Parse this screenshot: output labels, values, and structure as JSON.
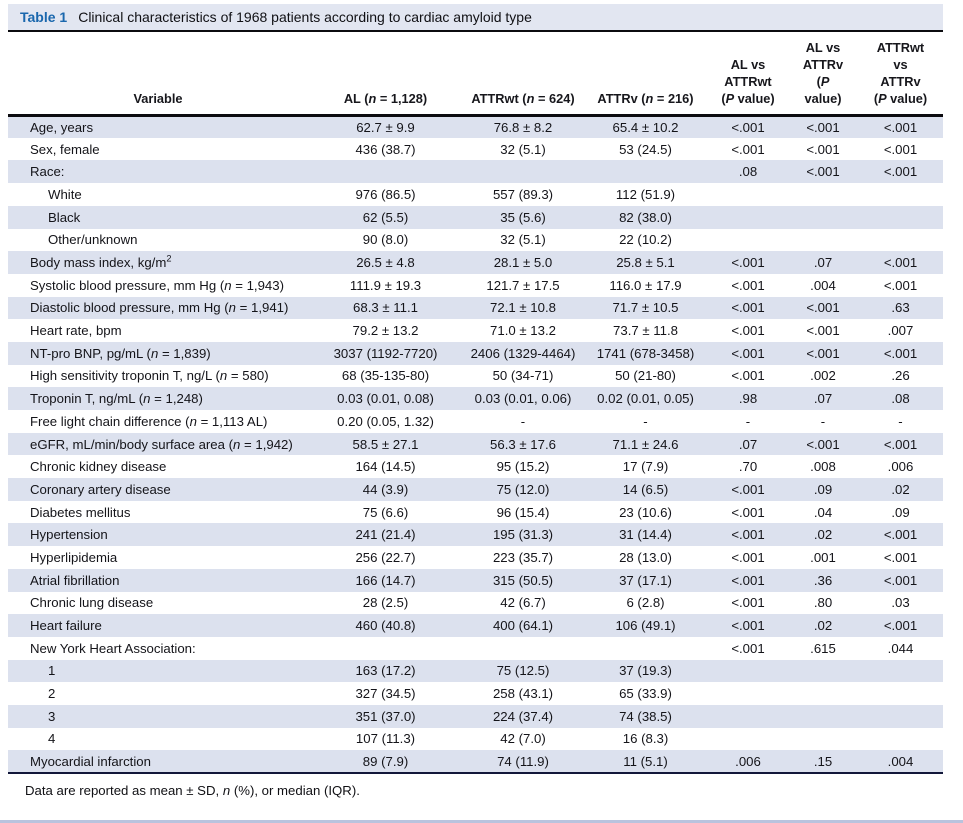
{
  "caption": {
    "label": "Table 1",
    "title": "Clinical characteristics of 1968 patients according to cardiac amyloid type"
  },
  "colors": {
    "accent_blue": "#1a67ad",
    "row_band": "#dce1ee",
    "caption_band": "#e2e6f1",
    "rule_dark": "#0b0b0f",
    "bottom_edge_line": "#b9c3de"
  },
  "table": {
    "columns": [
      {
        "label": "Variable"
      },
      {
        "label": "AL (*n* = 1,128)"
      },
      {
        "label": "ATTRwt (*n* = 624)"
      },
      {
        "label": "ATTRv (*n* = 216)"
      },
      {
        "label": "AL vs\nATTRwt\n(*P* value)"
      },
      {
        "label": "AL vs\nATTRv\n(*P*\nvalue)"
      },
      {
        "label": "ATTRwt\nvs\nATTRv\n(*P* value)"
      }
    ],
    "rows": [
      {
        "label": "Age, years",
        "indent": false,
        "cells": [
          "62.7 ± 9.9",
          "76.8 ± 8.2",
          "65.4 ± 10.2",
          "<.001",
          "<.001",
          "<.001"
        ]
      },
      {
        "label": "Sex, female",
        "indent": false,
        "cells": [
          "436 (38.7)",
          "32 (5.1)",
          "53 (24.5)",
          "<.001",
          "<.001",
          "<.001"
        ]
      },
      {
        "label": "Race:",
        "indent": false,
        "cells": [
          "",
          "",
          "",
          ".08",
          "<.001",
          "<.001"
        ]
      },
      {
        "label": "White",
        "indent": true,
        "cells": [
          "976 (86.5)",
          "557 (89.3)",
          "112 (51.9)",
          "",
          "",
          ""
        ]
      },
      {
        "label": "Black",
        "indent": true,
        "cells": [
          "62 (5.5)",
          "35 (5.6)",
          "82 (38.0)",
          "",
          "",
          ""
        ]
      },
      {
        "label": "Other/unknown",
        "indent": true,
        "cells": [
          "90 (8.0)",
          "32 (5.1)",
          "22 (10.2)",
          "",
          "",
          ""
        ]
      },
      {
        "label": "Body mass index, kg/m^2^",
        "indent": false,
        "cells": [
          "26.5 ± 4.8",
          "28.1 ± 5.0",
          "25.8 ± 5.1",
          "<.001",
          ".07",
          "<.001"
        ]
      },
      {
        "label": "Systolic blood pressure, mm Hg (*n* = 1,943)",
        "indent": false,
        "cells": [
          "111.9 ± 19.3",
          "121.7 ± 17.5",
          "116.0 ± 17.9",
          "<.001",
          ".004",
          "<.001"
        ]
      },
      {
        "label": "Diastolic blood pressure, mm Hg (*n* = 1,941)",
        "indent": false,
        "cells": [
          "68.3 ± 11.1",
          "72.1 ± 10.8",
          "71.7 ± 10.5",
          "<.001",
          "<.001",
          ".63"
        ]
      },
      {
        "label": "Heart rate, bpm",
        "indent": false,
        "cells": [
          "79.2 ± 13.2",
          "71.0 ± 13.2",
          "73.7 ± 11.8",
          "<.001",
          "<.001",
          ".007"
        ]
      },
      {
        "label": "NT-pro BNP, pg/mL (*n* = 1,839)",
        "indent": false,
        "cells": [
          "3037 (1192-7720)",
          "2406 (1329-4464)",
          "1741 (678-3458)",
          "<.001",
          "<.001",
          "<.001"
        ]
      },
      {
        "label": "High sensitivity troponin T, ng/L (*n* = 580)",
        "indent": false,
        "cells": [
          "68 (35-135-80)",
          "50 (34-71)",
          "50 (21-80)",
          "<.001",
          ".002",
          ".26"
        ]
      },
      {
        "label": "Troponin T, ng/mL (*n* = 1,248)",
        "indent": false,
        "cells": [
          "0.03 (0.01, 0.08)",
          "0.03 (0.01, 0.06)",
          "0.02 (0.01, 0.05)",
          ".98",
          ".07",
          ".08"
        ]
      },
      {
        "label": "Free light chain difference (*n* = 1,113 AL)",
        "indent": false,
        "cells": [
          "0.20 (0.05, 1.32)",
          "-",
          "-",
          "-",
          "-",
          "-"
        ]
      },
      {
        "label": "eGFR, mL/min/body surface area (*n* = 1,942)",
        "indent": false,
        "cells": [
          "58.5 ± 27.1",
          "56.3 ± 17.6",
          "71.1 ± 24.6",
          ".07",
          "<.001",
          "<.001"
        ]
      },
      {
        "label": "Chronic kidney disease",
        "indent": false,
        "cells": [
          "164 (14.5)",
          "95 (15.2)",
          "17 (7.9)",
          ".70",
          ".008",
          ".006"
        ]
      },
      {
        "label": "Coronary artery disease",
        "indent": false,
        "cells": [
          "44 (3.9)",
          "75 (12.0)",
          "14 (6.5)",
          "<.001",
          ".09",
          ".02"
        ]
      },
      {
        "label": "Diabetes mellitus",
        "indent": false,
        "cells": [
          "75 (6.6)",
          "96 (15.4)",
          "23 (10.6)",
          "<.001",
          ".04",
          ".09"
        ]
      },
      {
        "label": "Hypertension",
        "indent": false,
        "cells": [
          "241 (21.4)",
          "195 (31.3)",
          "31 (14.4)",
          "<.001",
          ".02",
          "<.001"
        ]
      },
      {
        "label": "Hyperlipidemia",
        "indent": false,
        "cells": [
          "256 (22.7)",
          "223 (35.7)",
          "28 (13.0)",
          "<.001",
          ".001",
          "<.001"
        ]
      },
      {
        "label": "Atrial fibrillation",
        "indent": false,
        "cells": [
          "166 (14.7)",
          "315 (50.5)",
          "37 (17.1)",
          "<.001",
          ".36",
          "<.001"
        ]
      },
      {
        "label": "Chronic lung disease",
        "indent": false,
        "cells": [
          "28 (2.5)",
          "42 (6.7)",
          "6 (2.8)",
          "<.001",
          ".80",
          ".03"
        ]
      },
      {
        "label": "Heart failure",
        "indent": false,
        "cells": [
          "460 (40.8)",
          "400 (64.1)",
          "106 (49.1)",
          "<.001",
          ".02",
          "<.001"
        ]
      },
      {
        "label": "New York Heart Association:",
        "indent": false,
        "cells": [
          "",
          "",
          "",
          "<.001",
          ".615",
          ".044"
        ]
      },
      {
        "label": "1",
        "indent": true,
        "cells": [
          "163 (17.2)",
          "75 (12.5)",
          "37 (19.3)",
          "",
          "",
          ""
        ]
      },
      {
        "label": "2",
        "indent": true,
        "cells": [
          "327 (34.5)",
          "258 (43.1)",
          "65 (33.9)",
          "",
          "",
          ""
        ]
      },
      {
        "label": "3",
        "indent": true,
        "cells": [
          "351 (37.0)",
          "224 (37.4)",
          "74 (38.5)",
          "",
          "",
          ""
        ]
      },
      {
        "label": "4",
        "indent": true,
        "cells": [
          "107 (11.3)",
          "42 (7.0)",
          "16 (8.3)",
          "",
          "",
          ""
        ]
      },
      {
        "label": "Myocardial infarction",
        "indent": false,
        "cells": [
          "89 (7.9)",
          "74 (11.9)",
          "11 (5.1)",
          ".006",
          ".15",
          ".004"
        ]
      }
    ]
  },
  "footnote": "Data are reported as mean ± SD, *n* (%), or median (IQR)."
}
